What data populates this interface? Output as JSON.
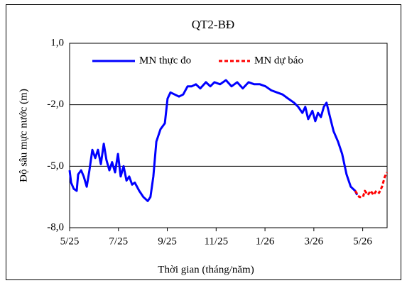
{
  "chart_data": {
    "type": "line",
    "title": "QT2-BĐ",
    "x_label": "Thời gian  (tháng/năm)",
    "y_label": "Độ sâu mực nước (m)",
    "xlim": [
      0,
      13
    ],
    "ylim": [
      -8,
      1
    ],
    "xticks": [
      {
        "value": 0,
        "label": "5/25"
      },
      {
        "value": 2,
        "label": "7/25"
      },
      {
        "value": 4,
        "label": "9/25"
      },
      {
        "value": 6,
        "label": "11/25"
      },
      {
        "value": 8,
        "label": "1/26"
      },
      {
        "value": 10,
        "label": "3/26"
      },
      {
        "value": 12,
        "label": "5/26"
      }
    ],
    "yticks": [
      {
        "value": 1,
        "label": "1,0"
      },
      {
        "value": -2,
        "label": "-2,0"
      },
      {
        "value": -5,
        "label": "-5,0"
      },
      {
        "value": -8,
        "label": "-8,0"
      }
    ],
    "grid": true,
    "legend": "top",
    "series": [
      {
        "name": "MN thực đo",
        "color": "#0000ff",
        "dashed": false,
        "x": [
          0,
          0.06,
          0.17,
          0.29,
          0.35,
          0.47,
          0.58,
          0.7,
          0.81,
          0.93,
          1.05,
          1.16,
          1.28,
          1.4,
          1.51,
          1.63,
          1.74,
          1.86,
          1.98,
          2.09,
          2.21,
          2.33,
          2.44,
          2.56,
          2.67,
          2.85,
          3.02,
          3.2,
          3.31,
          3.43,
          3.55,
          3.72,
          3.9,
          4.01,
          4.13,
          4.3,
          4.48,
          4.65,
          4.83,
          5.0,
          5.17,
          5.35,
          5.58,
          5.76,
          5.93,
          6.16,
          6.4,
          6.63,
          6.86,
          7.09,
          7.33,
          7.56,
          7.79,
          8.02,
          8.26,
          8.49,
          8.72,
          8.95,
          9.19,
          9.36,
          9.53,
          9.65,
          9.77,
          9.94,
          10.06,
          10.17,
          10.29,
          10.41,
          10.52,
          10.64,
          10.81,
          10.99,
          11.16,
          11.34,
          11.51,
          11.69,
          11.77
        ],
        "values": [
          -5.2,
          -5.8,
          -6.1,
          -6.2,
          -5.4,
          -5.2,
          -5.5,
          -6.0,
          -5.2,
          -4.2,
          -4.6,
          -4.2,
          -4.9,
          -3.9,
          -4.7,
          -5.2,
          -4.8,
          -5.3,
          -4.4,
          -5.5,
          -5.0,
          -5.7,
          -5.5,
          -5.9,
          -5.8,
          -6.2,
          -6.5,
          -6.7,
          -6.5,
          -5.5,
          -3.8,
          -3.2,
          -2.9,
          -1.7,
          -1.4,
          -1.5,
          -1.6,
          -1.5,
          -1.1,
          -1.1,
          -1.0,
          -1.2,
          -0.9,
          -1.1,
          -0.9,
          -1.0,
          -0.8,
          -1.1,
          -0.9,
          -1.2,
          -0.9,
          -1.0,
          -1.0,
          -1.1,
          -1.3,
          -1.4,
          -1.5,
          -1.7,
          -1.9,
          -2.1,
          -2.4,
          -2.1,
          -2.7,
          -2.3,
          -2.8,
          -2.4,
          -2.6,
          -2.1,
          -1.9,
          -2.5,
          -3.3,
          -3.8,
          -4.4,
          -5.4,
          -6.0,
          -6.2,
          -6.4
        ]
      },
      {
        "name": "MN dự báo",
        "color": "#ff0000",
        "dashed": true,
        "x": [
          11.69,
          11.86,
          12.01,
          12.09,
          12.21,
          12.33,
          12.44,
          12.56,
          12.67,
          12.79,
          12.91,
          12.99
        ],
        "values": [
          -6.2,
          -6.5,
          -6.5,
          -6.2,
          -6.4,
          -6.2,
          -6.4,
          -6.2,
          -6.3,
          -6.0,
          -5.5,
          -5.3
        ]
      }
    ]
  }
}
